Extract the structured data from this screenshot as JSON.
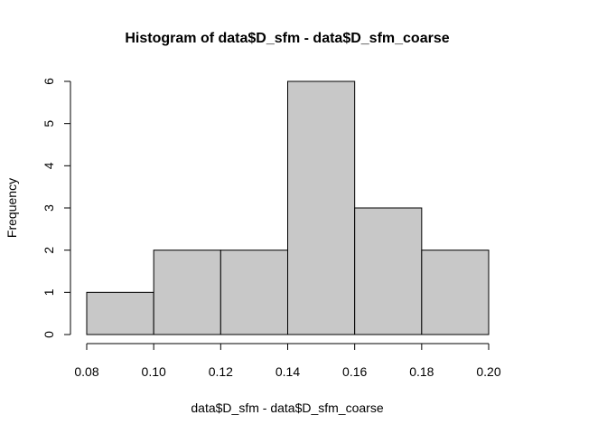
{
  "chart_data": {
    "type": "bar",
    "title": "Histogram of data$D_sfm - data$D_sfm_coarse",
    "xlabel": "data$D_sfm - data$D_sfm_coarse",
    "ylabel": "Frequency",
    "bins": [
      {
        "start": 0.08,
        "end": 0.1,
        "count": 1
      },
      {
        "start": 0.1,
        "end": 0.12,
        "count": 2
      },
      {
        "start": 0.12,
        "end": 0.14,
        "count": 2
      },
      {
        "start": 0.14,
        "end": 0.16,
        "count": 6
      },
      {
        "start": 0.16,
        "end": 0.18,
        "count": 3
      },
      {
        "start": 0.18,
        "end": 0.2,
        "count": 2
      }
    ],
    "xlim": [
      0.08,
      0.2
    ],
    "ylim": [
      0,
      6
    ],
    "x_ticks": [
      "0.08",
      "0.10",
      "0.12",
      "0.14",
      "0.16",
      "0.18",
      "0.20"
    ],
    "y_ticks": [
      "0",
      "1",
      "2",
      "3",
      "4",
      "5",
      "6"
    ],
    "bar_color": "#c8c8c8",
    "grid": false
  }
}
